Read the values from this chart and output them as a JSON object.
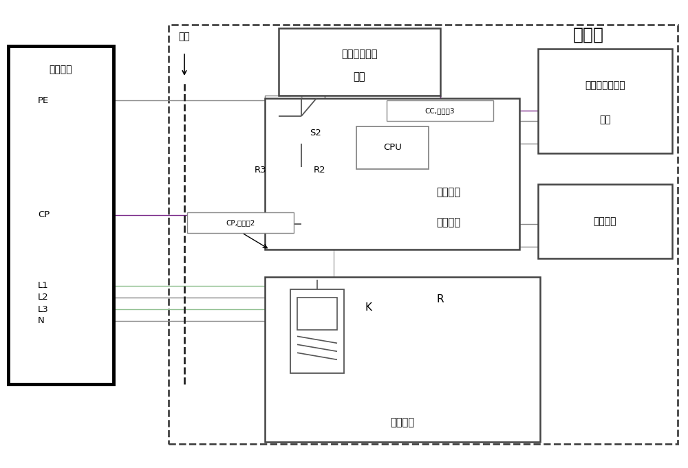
{
  "bg": "white",
  "lc": "#555555",
  "dark": "#222222",
  "purple": "#7B2D8B",
  "green": "#4CAF50",
  "gray": "#888888",
  "light_gray": "#aaaaaa",
  "title": "控制器",
  "supply_plug": "供电插头",
  "cable_lbl": "电缆",
  "pe": "PE",
  "cp": "CP",
  "l1": "L1",
  "l2": "L2",
  "l3": "L3",
  "n": "N",
  "cable_spec_line1": "电缆规格设置",
  "cable_spec_line2": "装置",
  "vehicle_ctrl_line1": "车辆充电",
  "vehicle_ctrl_line2": "控制装置",
  "display_line1": "显示与人机交互",
  "display_line2": "装置",
  "comm": "通信接口",
  "analog_load": "模拟负载",
  "cpu": "CPU",
  "s2": "S2",
  "r2": "R2",
  "r3": "R3",
  "k": "K",
  "r": "R",
  "cc3_line1": "CC,",
  "cc3_line2": "检测点3",
  "cp2_line1": "CP,",
  "cp2_line2": "检测点2",
  "fig_w": 10.0,
  "fig_h": 6.81,
  "dpi": 100
}
